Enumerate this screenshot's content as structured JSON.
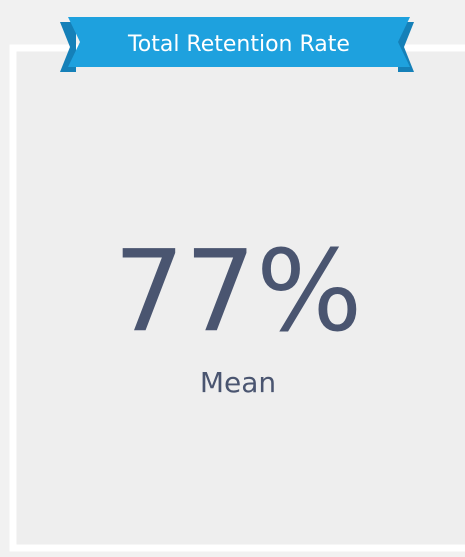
{
  "kpi": {
    "title": "Total Retention Rate",
    "value": "77%",
    "label": "Mean"
  }
}
